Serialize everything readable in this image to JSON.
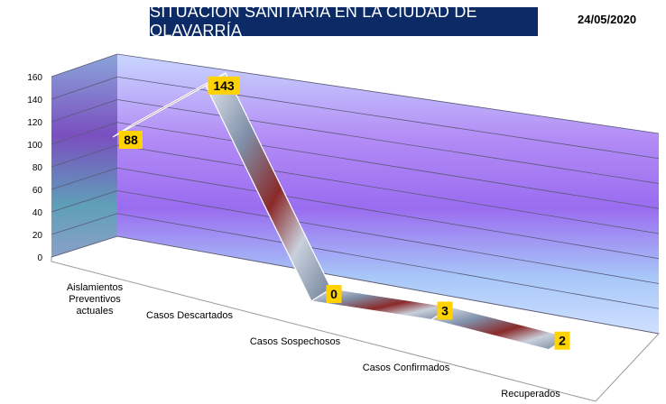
{
  "header": {
    "title": "SITUACIÓN SANITARIA EN LA CIUDAD DE OLAVARRÍA",
    "date": "24/05/2020"
  },
  "chart_data": {
    "type": "line",
    "style": "3d-line",
    "title": "SITUACIÓN SANITARIA EN LA CIUDAD DE OLAVARRÍA",
    "categories": [
      "Aislamientos Preventivos actuales",
      "Casos Descartados",
      "Casos Sospechosos",
      "Casos Confirmados",
      "Recuperados"
    ],
    "values": [
      88,
      143,
      0,
      3,
      2
    ],
    "data_labels": [
      "88",
      "143",
      "0",
      "3",
      "2"
    ],
    "ylim": [
      0,
      160
    ],
    "yticks": [
      "0",
      "20",
      "40",
      "60",
      "80",
      "100",
      "120",
      "140",
      "160"
    ],
    "grid": true,
    "label_color": "#ffd200",
    "wall_color": "#b9a0f0",
    "ribbon_color": "#8f9fb5"
  }
}
